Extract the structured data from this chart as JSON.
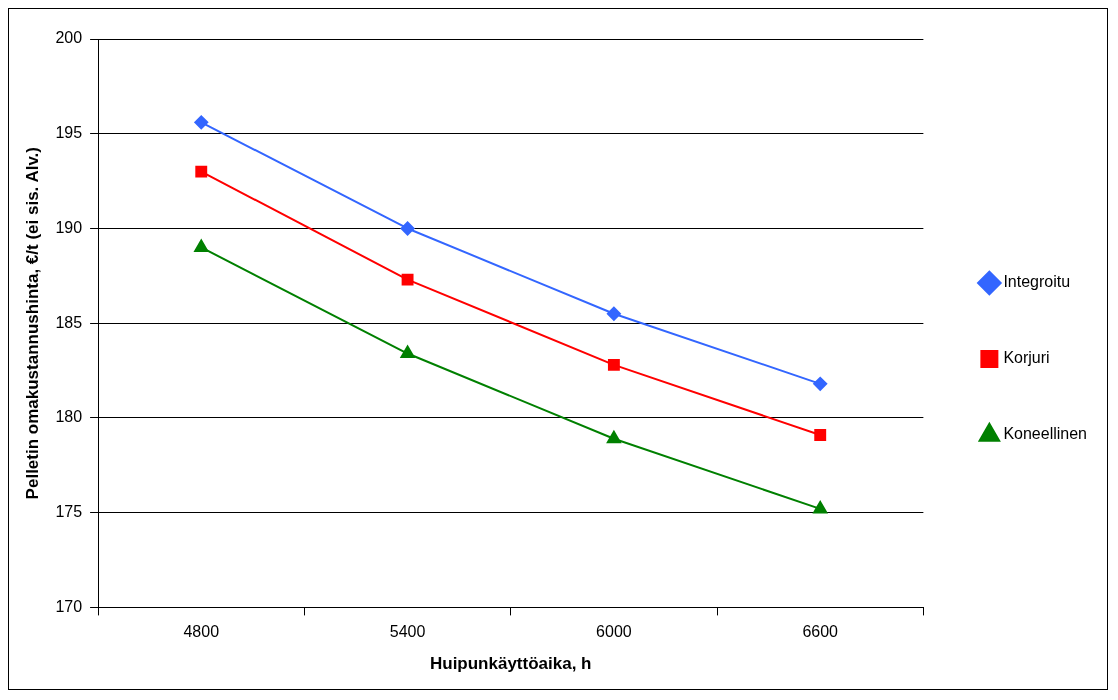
{
  "chart_data": {
    "type": "line",
    "xlabel": "Huipunkäyttöaika, h",
    "ylabel": "Pelletin omakustannushinta, €/t (ei sis. Alv.)",
    "categories": [
      "4800",
      "5400",
      "6000",
      "6600"
    ],
    "ylim": [
      170,
      200
    ],
    "yticks": [
      170,
      175,
      180,
      185,
      190,
      195,
      200
    ],
    "grid": "y",
    "legend": "right",
    "line_style": "solid",
    "series": [
      {
        "name": "Integroitu",
        "color": "#3366ff",
        "marker": "diamond",
        "values": [
          195.6,
          190.0,
          185.5,
          181.8
        ]
      },
      {
        "name": "Korjuri",
        "color": "#ff0000",
        "marker": "square",
        "values": [
          193.0,
          187.3,
          182.8,
          179.1
        ]
      },
      {
        "name": "Koneellinen",
        "color": "#008000",
        "marker": "triangle",
        "values": [
          189.0,
          183.4,
          178.9,
          175.2
        ]
      }
    ]
  }
}
